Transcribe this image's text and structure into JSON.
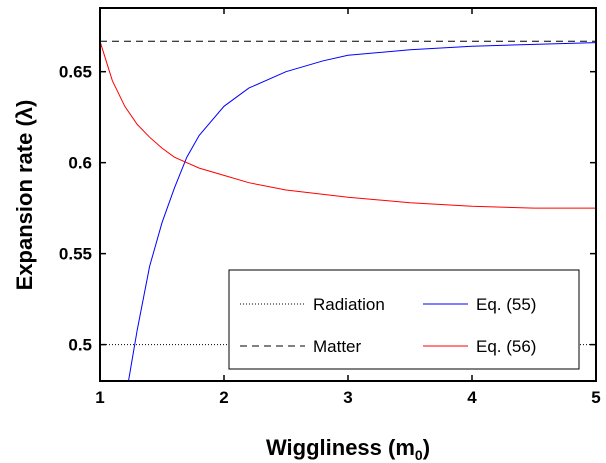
{
  "chart_data": {
    "type": "line",
    "xlabel_main": "Wiggliness (m",
    "xlabel_sub": "0",
    "xlabel_end": ")",
    "ylabel": "Expansion rate (λ)",
    "xlim": [
      1,
      5
    ],
    "ylim": [
      0.48,
      0.685
    ],
    "xticks": [
      1,
      2,
      3,
      4,
      5
    ],
    "xtick_labels": [
      "1",
      "2",
      "3",
      "4",
      "5"
    ],
    "yticks": [
      0.5,
      0.55,
      0.6,
      0.65
    ],
    "ytick_labels": [
      "0.5",
      "0.55",
      "0.6",
      "0.65"
    ],
    "grid": false,
    "legend_position": "bottom-right",
    "series": [
      {
        "name": "Radiation",
        "color": "#000000",
        "style": "dotted",
        "x": [
          1,
          5
        ],
        "y": [
          0.5,
          0.5
        ]
      },
      {
        "name": "Matter",
        "color": "#000000",
        "style": "dashed",
        "x": [
          1,
          5
        ],
        "y": [
          0.6667,
          0.6667
        ]
      },
      {
        "name": "Eq. (55)",
        "color": "#0000ff",
        "style": "solid",
        "x": [
          1.23,
          1.3,
          1.4,
          1.5,
          1.6,
          1.7,
          1.8,
          2.0,
          2.2,
          2.5,
          2.8,
          3.0,
          3.5,
          4.0,
          4.5,
          5.0
        ],
        "y": [
          0.48,
          0.508,
          0.543,
          0.567,
          0.586,
          0.603,
          0.615,
          0.631,
          0.641,
          0.65,
          0.656,
          0.659,
          0.662,
          0.664,
          0.665,
          0.666
        ]
      },
      {
        "name": "Eq. (56)",
        "color": "#ff0000",
        "style": "solid",
        "x": [
          1.0,
          1.1,
          1.2,
          1.3,
          1.4,
          1.5,
          1.6,
          1.8,
          2.0,
          2.2,
          2.5,
          3.0,
          3.5,
          4.0,
          4.5,
          5.0
        ],
        "y": [
          0.6667,
          0.645,
          0.631,
          0.621,
          0.614,
          0.608,
          0.603,
          0.597,
          0.593,
          0.589,
          0.585,
          0.581,
          0.578,
          0.576,
          0.575,
          0.575
        ]
      }
    ]
  }
}
